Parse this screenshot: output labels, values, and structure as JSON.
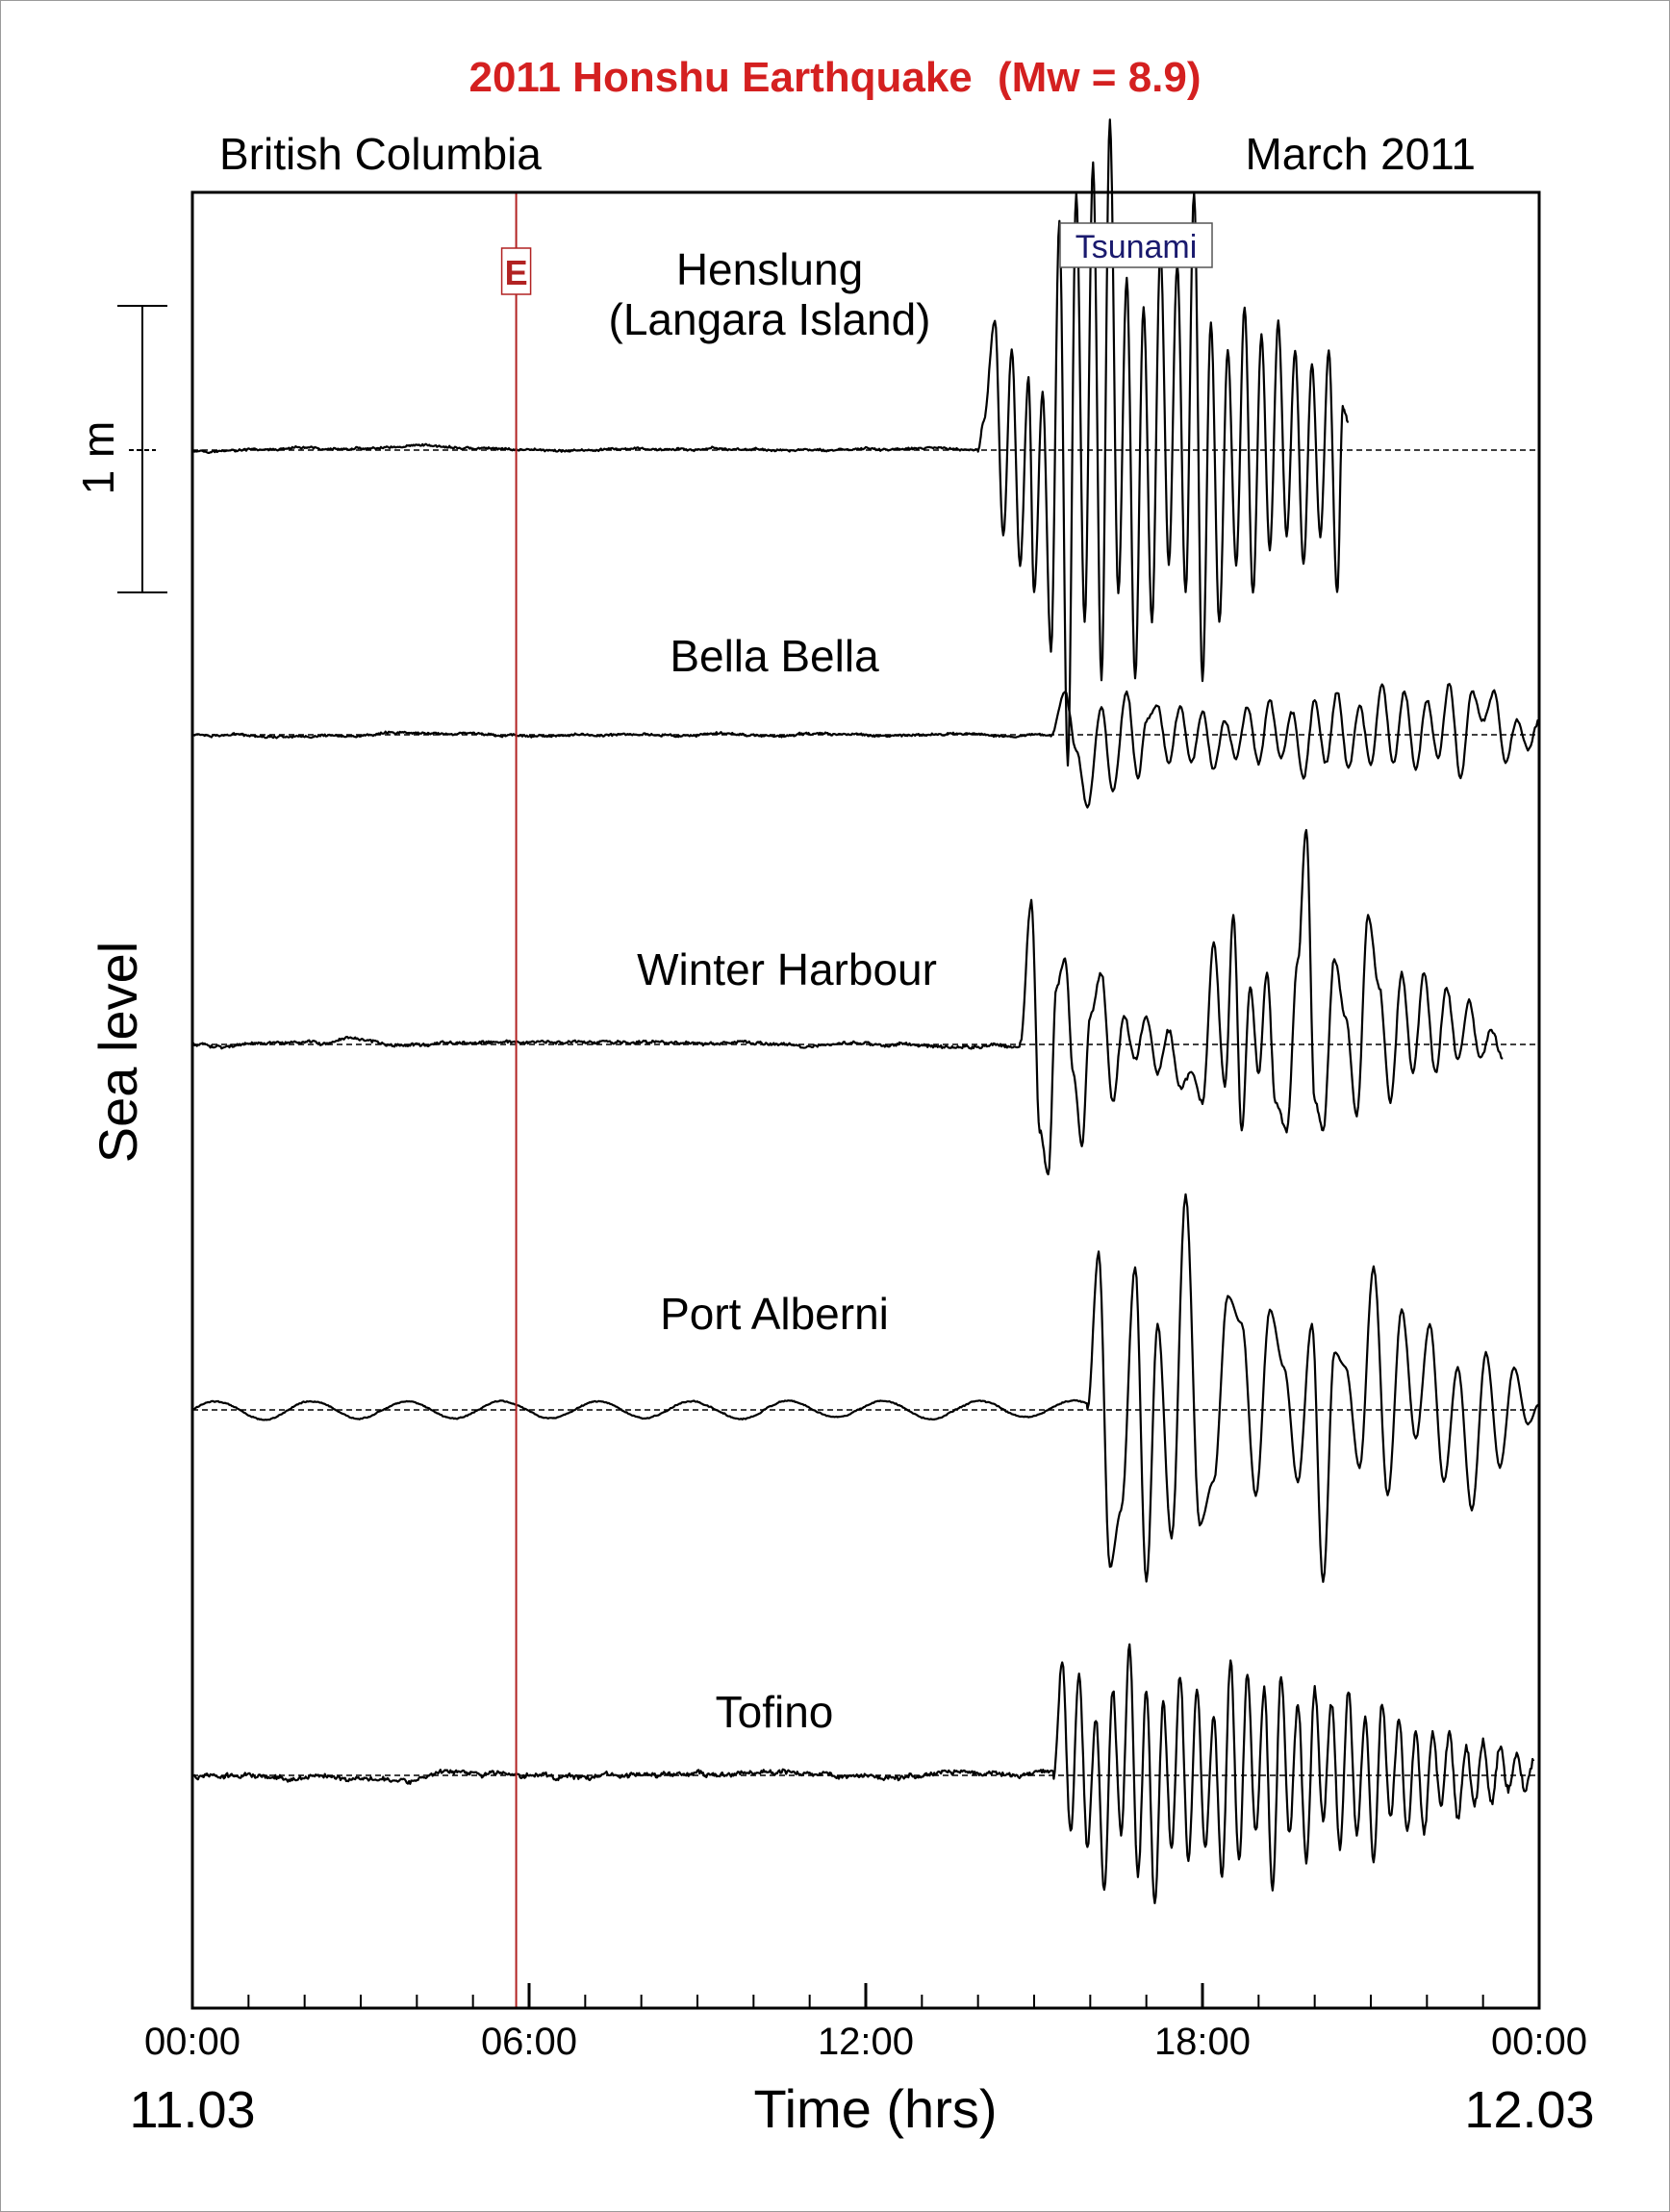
{
  "chart_data": {
    "type": "line",
    "title": "2011 Honshu Earthquake",
    "title_formula": "(Mw = 8.9)",
    "region": "British Columbia",
    "period": "March 2011",
    "ylabel": "Sea level",
    "xlabel": "Time (hrs)",
    "x_unit": "hours",
    "xlim": [
      0,
      24
    ],
    "x_ticks": [
      "00:00",
      "06:00",
      "12:00",
      "18:00",
      "00:00"
    ],
    "x_tick_values": [
      0,
      6,
      12,
      18,
      24
    ],
    "date_start": "11.03",
    "date_end": "12.03",
    "scale_bar": "1 m",
    "earthquake_time_hr": 5.77,
    "earthquake_marker": "E",
    "tsunami_label": "Tsunami",
    "tsunami_color": "#1a1a6e",
    "marker_color": "#b22222",
    "series": [
      {
        "name": "Henslung",
        "name_line2": "(Langara Island)",
        "arrival_hr": 14.0,
        "end_hr": 20.6,
        "noise_m": 0.006,
        "points": [
          [
            14.0,
            0
          ],
          [
            14.1,
            0.1
          ],
          [
            14.3,
            0.45
          ],
          [
            14.45,
            -0.3
          ],
          [
            14.6,
            0.35
          ],
          [
            14.75,
            -0.4
          ],
          [
            14.9,
            0.25
          ],
          [
            15.0,
            -0.5
          ],
          [
            15.15,
            0.2
          ],
          [
            15.3,
            -0.7
          ],
          [
            15.45,
            0.8
          ],
          [
            15.6,
            -1.1
          ],
          [
            15.75,
            0.9
          ],
          [
            15.9,
            -0.6
          ],
          [
            16.05,
            1.0
          ],
          [
            16.2,
            -0.8
          ],
          [
            16.35,
            1.15
          ],
          [
            16.5,
            -0.5
          ],
          [
            16.65,
            0.6
          ],
          [
            16.8,
            -0.8
          ],
          [
            16.95,
            0.5
          ],
          [
            17.1,
            -0.6
          ],
          [
            17.25,
            0.7
          ],
          [
            17.4,
            -0.4
          ],
          [
            17.55,
            0.65
          ],
          [
            17.7,
            -0.5
          ],
          [
            17.85,
            0.9
          ],
          [
            18.0,
            -0.8
          ],
          [
            18.15,
            0.45
          ],
          [
            18.3,
            -0.6
          ],
          [
            18.45,
            0.35
          ],
          [
            18.6,
            -0.4
          ],
          [
            18.75,
            0.5
          ],
          [
            18.9,
            -0.5
          ],
          [
            19.05,
            0.4
          ],
          [
            19.2,
            -0.35
          ],
          [
            19.35,
            0.45
          ],
          [
            19.5,
            -0.3
          ],
          [
            19.65,
            0.35
          ],
          [
            19.8,
            -0.4
          ],
          [
            19.95,
            0.3
          ],
          [
            20.1,
            -0.3
          ],
          [
            20.25,
            0.35
          ],
          [
            20.4,
            -0.5
          ],
          [
            20.5,
            0.15
          ],
          [
            20.6,
            0.1
          ]
        ]
      },
      {
        "name": "Bella Bella",
        "arrival_hr": 15.3,
        "end_hr": 24.0,
        "noise_m": 0.006,
        "points": [
          [
            15.3,
            0
          ],
          [
            15.55,
            0.15
          ],
          [
            15.75,
            -0.05
          ],
          [
            15.95,
            -0.25
          ],
          [
            16.2,
            0.1
          ],
          [
            16.4,
            -0.2
          ],
          [
            16.65,
            0.15
          ],
          [
            16.85,
            -0.15
          ],
          [
            17.0,
            0.05
          ],
          [
            17.2,
            0.1
          ],
          [
            17.4,
            -0.1
          ],
          [
            17.6,
            0.1
          ],
          [
            17.8,
            -0.1
          ],
          [
            18.0,
            0.08
          ],
          [
            18.2,
            -0.12
          ],
          [
            18.4,
            0.05
          ],
          [
            18.6,
            -0.08
          ],
          [
            18.8,
            0.1
          ],
          [
            19.0,
            -0.1
          ],
          [
            19.2,
            0.12
          ],
          [
            19.4,
            -0.08
          ],
          [
            19.6,
            0.08
          ],
          [
            19.8,
            -0.15
          ],
          [
            20.0,
            0.12
          ],
          [
            20.2,
            -0.1
          ],
          [
            20.4,
            0.15
          ],
          [
            20.6,
            -0.12
          ],
          [
            20.8,
            0.1
          ],
          [
            21.0,
            -0.1
          ],
          [
            21.2,
            0.18
          ],
          [
            21.4,
            -0.1
          ],
          [
            21.6,
            0.15
          ],
          [
            21.8,
            -0.12
          ],
          [
            22.0,
            0.12
          ],
          [
            22.2,
            -0.08
          ],
          [
            22.4,
            0.18
          ],
          [
            22.6,
            -0.15
          ],
          [
            22.8,
            0.15
          ],
          [
            23.0,
            0.05
          ],
          [
            23.2,
            0.15
          ],
          [
            23.4,
            -0.1
          ],
          [
            23.6,
            0.05
          ],
          [
            23.8,
            -0.05
          ],
          [
            24.0,
            0.05
          ]
        ]
      },
      {
        "name": "Winter Harbour",
        "arrival_hr": 14.75,
        "end_hr": 23.35,
        "noise_m": 0.008,
        "points": [
          [
            14.75,
            0
          ],
          [
            14.95,
            0.5
          ],
          [
            15.1,
            -0.3
          ],
          [
            15.25,
            -0.45
          ],
          [
            15.4,
            0.2
          ],
          [
            15.55,
            0.3
          ],
          [
            15.7,
            -0.1
          ],
          [
            15.85,
            -0.35
          ],
          [
            16.0,
            0.1
          ],
          [
            16.2,
            0.25
          ],
          [
            16.4,
            -0.2
          ],
          [
            16.6,
            0.1
          ],
          [
            16.8,
            -0.05
          ],
          [
            17.0,
            0.1
          ],
          [
            17.2,
            -0.1
          ],
          [
            17.4,
            0.05
          ],
          [
            17.6,
            -0.15
          ],
          [
            17.8,
            -0.1
          ],
          [
            18.0,
            -0.2
          ],
          [
            18.2,
            0.35
          ],
          [
            18.4,
            -0.15
          ],
          [
            18.55,
            0.45
          ],
          [
            18.7,
            -0.3
          ],
          [
            18.85,
            0.2
          ],
          [
            19.0,
            -0.1
          ],
          [
            19.15,
            0.25
          ],
          [
            19.3,
            -0.2
          ],
          [
            19.5,
            -0.3
          ],
          [
            19.7,
            0.3
          ],
          [
            19.85,
            0.75
          ],
          [
            20.0,
            -0.2
          ],
          [
            20.15,
            -0.3
          ],
          [
            20.35,
            0.3
          ],
          [
            20.55,
            0.1
          ],
          [
            20.75,
            -0.25
          ],
          [
            20.95,
            0.45
          ],
          [
            21.15,
            0.2
          ],
          [
            21.35,
            -0.2
          ],
          [
            21.55,
            0.25
          ],
          [
            21.75,
            -0.1
          ],
          [
            21.95,
            0.25
          ],
          [
            22.15,
            -0.1
          ],
          [
            22.35,
            0.2
          ],
          [
            22.55,
            -0.05
          ],
          [
            22.75,
            0.15
          ],
          [
            22.95,
            -0.05
          ],
          [
            23.15,
            0.05
          ],
          [
            23.35,
            -0.05
          ]
        ]
      },
      {
        "name": "Port Alberni",
        "arrival_hr": 15.95,
        "end_hr": 24.0,
        "noise_m": 0.003,
        "points": [
          [
            15.95,
            0
          ],
          [
            16.15,
            0.55
          ],
          [
            16.35,
            -0.55
          ],
          [
            16.55,
            -0.35
          ],
          [
            16.8,
            0.5
          ],
          [
            17.0,
            -0.6
          ],
          [
            17.2,
            0.3
          ],
          [
            17.45,
            -0.45
          ],
          [
            17.7,
            0.75
          ],
          [
            17.95,
            -0.4
          ],
          [
            18.2,
            -0.25
          ],
          [
            18.45,
            0.4
          ],
          [
            18.7,
            0.3
          ],
          [
            18.95,
            -0.3
          ],
          [
            19.2,
            0.35
          ],
          [
            19.45,
            0.15
          ],
          [
            19.7,
            -0.25
          ],
          [
            19.95,
            0.3
          ],
          [
            20.15,
            -0.6
          ],
          [
            20.35,
            0.2
          ],
          [
            20.55,
            0.15
          ],
          [
            20.8,
            -0.2
          ],
          [
            21.05,
            0.5
          ],
          [
            21.3,
            -0.3
          ],
          [
            21.55,
            0.35
          ],
          [
            21.8,
            -0.1
          ],
          [
            22.05,
            0.3
          ],
          [
            22.3,
            -0.25
          ],
          [
            22.55,
            0.15
          ],
          [
            22.8,
            -0.35
          ],
          [
            23.05,
            0.2
          ],
          [
            23.3,
            -0.2
          ],
          [
            23.55,
            0.15
          ],
          [
            23.8,
            -0.05
          ],
          [
            24.0,
            0.02
          ]
        ]
      },
      {
        "name": "Tofino",
        "arrival_hr": 15.35,
        "end_hr": 23.9,
        "noise_m": 0.012,
        "points": [
          [
            15.35,
            0
          ],
          [
            15.5,
            0.4
          ],
          [
            15.65,
            -0.2
          ],
          [
            15.8,
            0.35
          ],
          [
            15.95,
            -0.25
          ],
          [
            16.1,
            0.2
          ],
          [
            16.25,
            -0.4
          ],
          [
            16.4,
            0.3
          ],
          [
            16.55,
            -0.2
          ],
          [
            16.7,
            0.45
          ],
          [
            16.85,
            -0.35
          ],
          [
            17.0,
            0.3
          ],
          [
            17.15,
            -0.45
          ],
          [
            17.3,
            0.25
          ],
          [
            17.45,
            -0.25
          ],
          [
            17.6,
            0.35
          ],
          [
            17.75,
            -0.3
          ],
          [
            17.9,
            0.3
          ],
          [
            18.05,
            -0.25
          ],
          [
            18.2,
            0.2
          ],
          [
            18.35,
            -0.35
          ],
          [
            18.5,
            0.4
          ],
          [
            18.65,
            -0.3
          ],
          [
            18.8,
            0.35
          ],
          [
            18.95,
            -0.2
          ],
          [
            19.1,
            0.3
          ],
          [
            19.25,
            -0.4
          ],
          [
            19.4,
            0.35
          ],
          [
            19.55,
            -0.2
          ],
          [
            19.7,
            0.25
          ],
          [
            19.85,
            -0.3
          ],
          [
            20.0,
            0.3
          ],
          [
            20.15,
            -0.15
          ],
          [
            20.3,
            0.25
          ],
          [
            20.45,
            -0.25
          ],
          [
            20.6,
            0.3
          ],
          [
            20.75,
            -0.2
          ],
          [
            20.9,
            0.2
          ],
          [
            21.05,
            -0.3
          ],
          [
            21.2,
            0.25
          ],
          [
            21.35,
            -0.15
          ],
          [
            21.5,
            0.2
          ],
          [
            21.65,
            -0.2
          ],
          [
            21.8,
            0.15
          ],
          [
            21.95,
            -0.2
          ],
          [
            22.1,
            0.15
          ],
          [
            22.25,
            -0.1
          ],
          [
            22.4,
            0.15
          ],
          [
            22.55,
            -0.15
          ],
          [
            22.7,
            0.1
          ],
          [
            22.85,
            -0.1
          ],
          [
            23.0,
            0.12
          ],
          [
            23.15,
            -0.1
          ],
          [
            23.3,
            0.1
          ],
          [
            23.45,
            -0.05
          ],
          [
            23.6,
            0.08
          ],
          [
            23.75,
            -0.05
          ],
          [
            23.9,
            0.05
          ]
        ]
      }
    ]
  }
}
